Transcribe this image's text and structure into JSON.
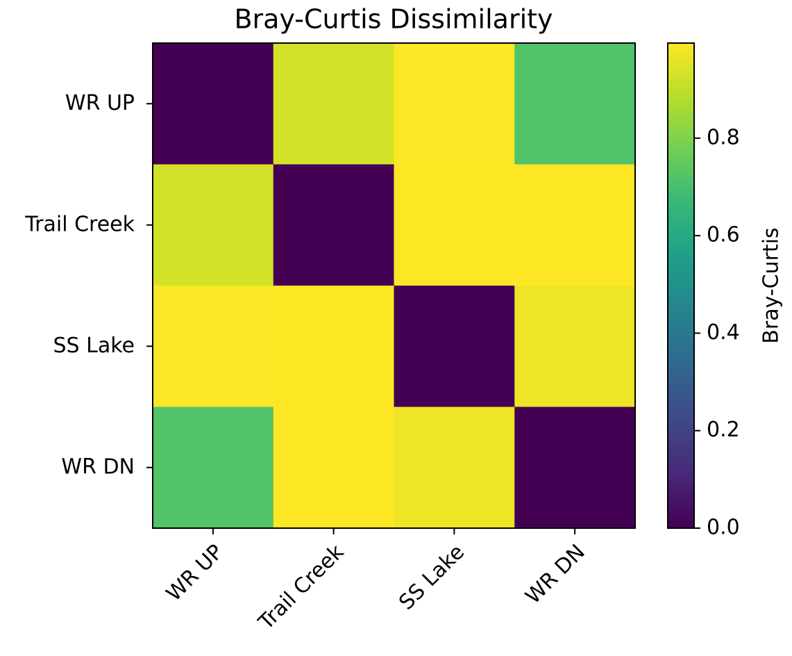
{
  "chart_data": {
    "type": "heatmap",
    "title": "Bray-Curtis Dissimilarity",
    "x_categories": [
      "WR UP",
      "Trail Creek",
      "SS Lake",
      "WR DN"
    ],
    "y_categories": [
      "WR UP",
      "Trail Creek",
      "SS Lake",
      "WR DN"
    ],
    "values": [
      [
        0,
        0.93,
        0.99,
        0.72
      ],
      [
        0.93,
        0,
        0.995,
        0.995
      ],
      [
        0.99,
        0.995,
        0,
        0.97
      ],
      [
        0.72,
        0.995,
        0.97,
        0
      ]
    ],
    "colormap": "viridis",
    "zlim": [
      0,
      0.995
    ],
    "colorbar_label": "Bray-Curtis",
    "colorbar_ticks": [
      {
        "value": 0,
        "label": "0.0"
      },
      0.2,
      0.4,
      0.6,
      0.8
    ]
  }
}
